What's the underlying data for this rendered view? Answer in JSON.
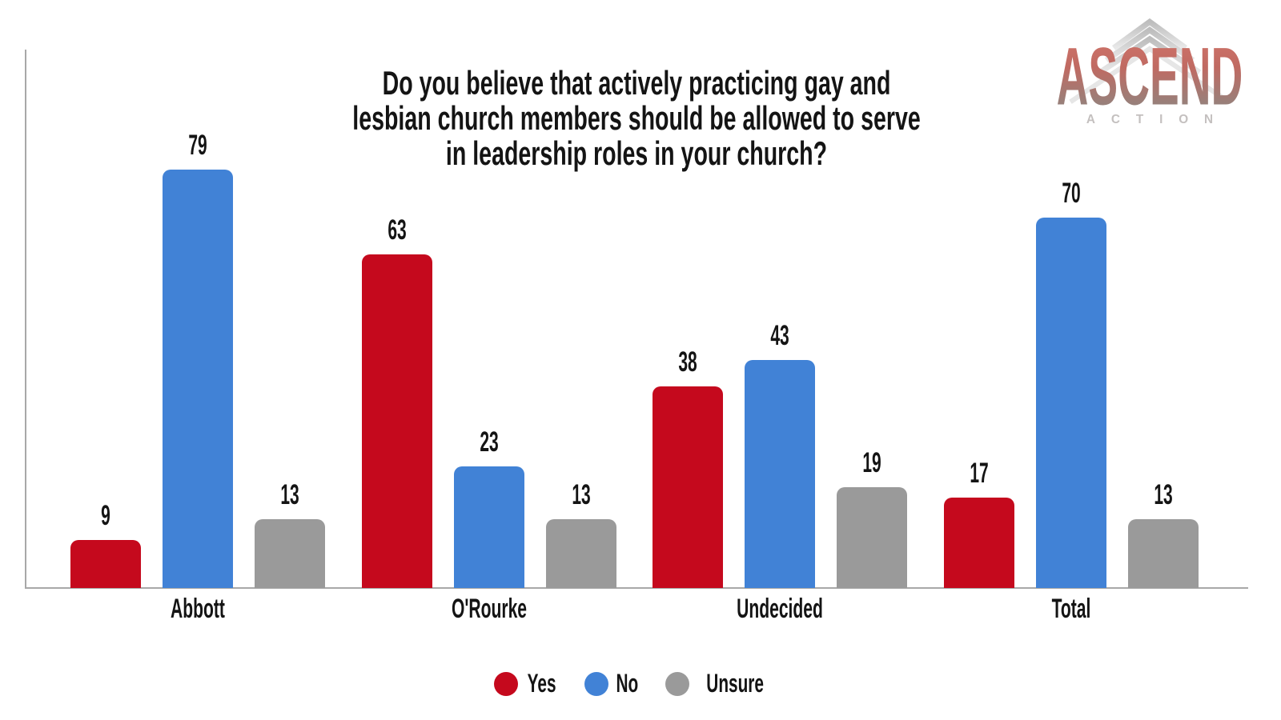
{
  "colors": {
    "yes": "#C5091D",
    "no": "#4182D6",
    "unsure": "#9A9A9A",
    "axis": "#A8A8A8",
    "text": "#141414"
  },
  "logo": {
    "brand": "ASCEND",
    "sub": "ACTION"
  },
  "chart_data": {
    "type": "bar",
    "title": "Do you believe that actively practicing gay and lesbian church members should be allowed to serve in leadership roles in your church?",
    "title_lines": [
      "Do you believe that actively practicing gay and",
      "lesbian church members should be allowed to serve",
      "in leadership roles in your church?"
    ],
    "categories": [
      "Abbott",
      "O'Rourke",
      "Undecided",
      "Total"
    ],
    "series": [
      {
        "name": "Yes",
        "color": "#C5091D",
        "values": [
          9,
          63,
          38,
          17
        ]
      },
      {
        "name": "No",
        "color": "#4182D6",
        "values": [
          79,
          23,
          43,
          70
        ]
      },
      {
        "name": "Unsure",
        "color": "#9A9A9A",
        "values": [
          13,
          13,
          19,
          13
        ]
      }
    ],
    "ylim": [
      0,
      100
    ],
    "grid": false,
    "legend_position": "bottom",
    "bar_labels": "values shown above each bar",
    "xlabel": "",
    "ylabel": ""
  }
}
